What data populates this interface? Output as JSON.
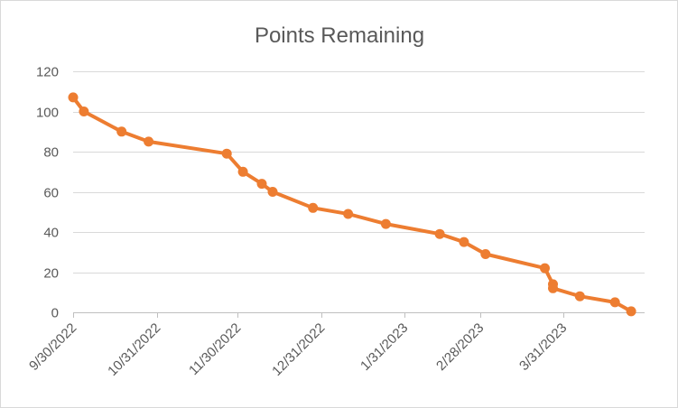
{
  "chart_data": {
    "type": "line",
    "title": "Points Remaining",
    "xlabel": "",
    "ylabel": "",
    "ylim": [
      0,
      120
    ],
    "yticks": [
      "0",
      "20",
      "40",
      "60",
      "80",
      "100",
      "120"
    ],
    "xlim": [
      "2022-09-30",
      "2023-04-30"
    ],
    "xticks": [
      "9/30/2022",
      "10/31/2022",
      "11/30/2022",
      "12/31/2022",
      "1/31/2023",
      "2/28/2023",
      "3/31/2023"
    ],
    "grid": true,
    "legend": "none",
    "series": [
      {
        "color": "#ed7d31",
        "points": [
          {
            "x": "2022-09-30",
            "y": 107
          },
          {
            "x": "2022-10-04",
            "y": 100
          },
          {
            "x": "2022-10-18",
            "y": 90
          },
          {
            "x": "2022-10-28",
            "y": 85
          },
          {
            "x": "2022-11-26",
            "y": 79
          },
          {
            "x": "2022-12-02",
            "y": 70
          },
          {
            "x": "2022-12-09",
            "y": 64
          },
          {
            "x": "2022-12-13",
            "y": 60
          },
          {
            "x": "2022-12-28",
            "y": 52
          },
          {
            "x": "2023-01-10",
            "y": 49
          },
          {
            "x": "2023-01-24",
            "y": 44
          },
          {
            "x": "2023-02-13",
            "y": 39
          },
          {
            "x": "2023-02-22",
            "y": 35
          },
          {
            "x": "2023-03-02",
            "y": 29
          },
          {
            "x": "2023-03-24",
            "y": 22
          },
          {
            "x": "2023-03-27",
            "y": 14
          },
          {
            "x": "2023-03-27",
            "y": 12
          },
          {
            "x": "2023-04-06",
            "y": 8
          },
          {
            "x": "2023-04-19",
            "y": 5
          },
          {
            "x": "2023-04-25",
            "y": 0.5
          }
        ]
      }
    ]
  }
}
